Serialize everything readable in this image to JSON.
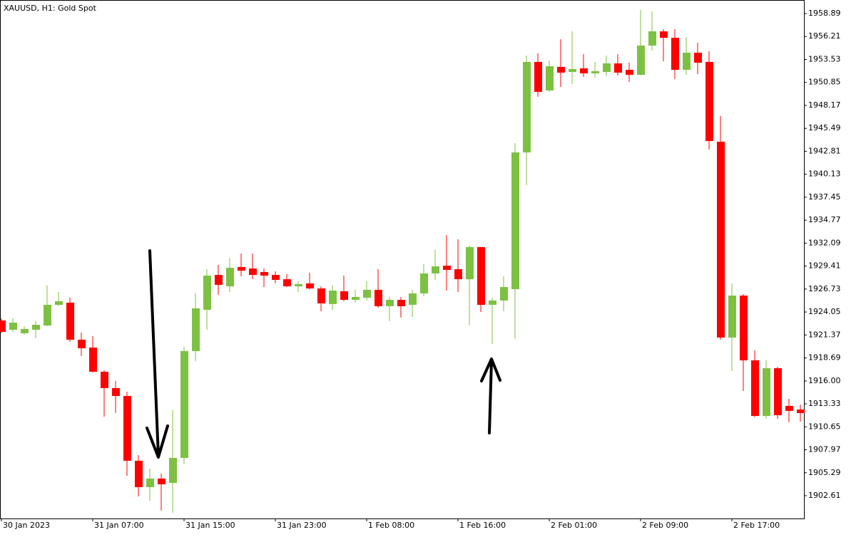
{
  "chart_data": {
    "type": "candlestick",
    "title": "XAUUSD, H1:  Gold Spot",
    "up_color": "#7dc142",
    "down_color": "#ff0000",
    "grid": false,
    "categories": [
      "30 Jan 2023",
      null,
      null,
      null,
      null,
      null,
      null,
      null,
      "31 Jan 07:00",
      null,
      null,
      null,
      null,
      null,
      null,
      null,
      "31 Jan 15:00",
      null,
      null,
      null,
      null,
      null,
      null,
      null,
      "31 Jan 23:00",
      null,
      null,
      null,
      null,
      null,
      null,
      null,
      "1 Feb 08:00",
      null,
      null,
      null,
      null,
      null,
      null,
      null,
      "1 Feb 16:00",
      null,
      null,
      null,
      null,
      null,
      null,
      null,
      "2 Feb 01:00",
      null,
      null,
      null,
      null,
      null,
      null,
      null,
      "2 Feb 09:00",
      null,
      null,
      null,
      null,
      null,
      null,
      null,
      "2 Feb 17:00",
      null,
      null,
      null,
      null,
      null,
      null
    ],
    "open": [
      1923.06,
      1921.98,
      1921.57,
      1921.98,
      1922.48,
      1924.89,
      1925.14,
      1920.82,
      1919.9,
      1917.08,
      1915.17,
      1914.25,
      1906.69,
      1903.61,
      1904.61,
      1904.11,
      1907.02,
      1919.49,
      1924.31,
      1928.38,
      1927.05,
      1929.3,
      1929.13,
      1928.72,
      1928.38,
      1927.88,
      1927.05,
      1927.39,
      1926.8,
      1924.98,
      1926.47,
      1925.47,
      1925.72,
      1926.64,
      1924.73,
      1925.47,
      1924.89,
      1926.22,
      1928.55,
      1929.46,
      1929.05,
      1927.88,
      1931.63,
      1924.89,
      1925.39,
      1926.72,
      1942.68,
      1953.24,
      1949.91,
      1952.66,
      1952.07,
      1952.49,
      1951.91,
      1952.07,
      1953.07,
      1952.32,
      1951.74,
      1955.15,
      1956.81,
      1956.06,
      1952.32,
      1954.32,
      1953.24,
      1943.93,
      1921.07,
      1925.97,
      1918.41,
      1911.92,
      1917.49,
      1913.09,
      1912.67
    ],
    "high": [
      1923.31,
      1923.31,
      1922.4,
      1922.98,
      1927.14,
      1926.39,
      1925.72,
      1921.65,
      1921.23,
      1917.24,
      1916.0,
      1914.75,
      1907.35,
      1905.77,
      1905.19,
      1912.59,
      1919.99,
      1926.22,
      1929.05,
      1929.55,
      1930.38,
      1930.88,
      1930.88,
      1929.13,
      1928.8,
      1928.47,
      1927.64,
      1928.63,
      1927.05,
      1927.14,
      1928.3,
      1926.64,
      1927.64,
      1929.05,
      1925.81,
      1925.81,
      1926.64,
      1929.63,
      1931.29,
      1933.04,
      1932.54,
      1931.79,
      1931.63,
      1925.72,
      1928.22,
      1943.76,
      1953.99,
      1954.24,
      1953.4,
      1955.9,
      1956.81,
      1954.15,
      1953.24,
      1953.99,
      1954.15,
      1953.15,
      1959.31,
      1959.14,
      1957.06,
      1957.06,
      1956.15,
      1955.48,
      1954.48,
      1946.92,
      1927.39,
      1926.14,
      1919.57,
      1918.41,
      1917.66,
      1913.92,
      1913.25
    ],
    "low": [
      1921.57,
      1921.73,
      1921.4,
      1920.99,
      1922.4,
      1924.73,
      1920.57,
      1918.91,
      1916.99,
      1911.84,
      1912.26,
      1904.94,
      1902.53,
      1902.03,
      1900.87,
      1900.62,
      1906.27,
      1918.33,
      1921.98,
      1926.06,
      1926.39,
      1928.22,
      1927.88,
      1926.97,
      1927.39,
      1926.97,
      1926.39,
      1926.72,
      1924.14,
      1924.31,
      1925.31,
      1925.14,
      1925.39,
      1924.56,
      1922.98,
      1923.4,
      1923.48,
      1925.89,
      1927.8,
      1926.55,
      1926.39,
      1922.48,
      1924.06,
      1920.32,
      1924.14,
      1920.9,
      1938.86,
      1949.16,
      1949.75,
      1950.33,
      1950.66,
      1951.49,
      1951.41,
      1951.58,
      1951.66,
      1950.91,
      1951.66,
      1954.57,
      1953.32,
      1951.24,
      1951.74,
      1951.82,
      1943.01,
      1920.82,
      1917.16,
      1914.83,
      1911.76,
      1911.59,
      1911.59,
      1911.18,
      1911.26
    ],
    "close": [
      1921.73,
      1922.81,
      1922.07,
      1922.56,
      1924.89,
      1925.31,
      1920.82,
      1919.82,
      1917.08,
      1915.17,
      1914.25,
      1906.69,
      1903.61,
      1904.61,
      1903.94,
      1907.02,
      1919.49,
      1924.48,
      1928.3,
      1927.22,
      1929.21,
      1928.88,
      1928.38,
      1928.3,
      1927.8,
      1927.05,
      1927.3,
      1926.8,
      1925.06,
      1926.55,
      1925.47,
      1925.81,
      1926.64,
      1924.73,
      1925.47,
      1924.73,
      1926.22,
      1928.55,
      1929.38,
      1928.97,
      1927.88,
      1931.63,
      1924.89,
      1925.39,
      1926.97,
      1942.68,
      1953.24,
      1949.75,
      1952.74,
      1951.99,
      1952.41,
      1951.91,
      1952.16,
      1953.07,
      1951.99,
      1951.74,
      1955.15,
      1956.81,
      1956.06,
      1952.32,
      1954.32,
      1953.15,
      1944.01,
      1921.07,
      1925.97,
      1918.41,
      1911.92,
      1917.49,
      1912.01,
      1912.51,
      1912.26
    ],
    "ylim": [
      1899.95,
      1960.47
    ],
    "yticks": [
      1902.61,
      1905.29,
      1907.97,
      1910.65,
      1913.33,
      {
        "value": 1916,
        "label": "1916.00"
      },
      1918.69,
      1921.37,
      1924.05,
      1926.73,
      1929.41,
      1932.09,
      1934.77,
      1937.45,
      1940.13,
      1942.81,
      1945.49,
      1948.17,
      1950.85,
      1953.53,
      1956.21,
      1958.89
    ]
  }
}
